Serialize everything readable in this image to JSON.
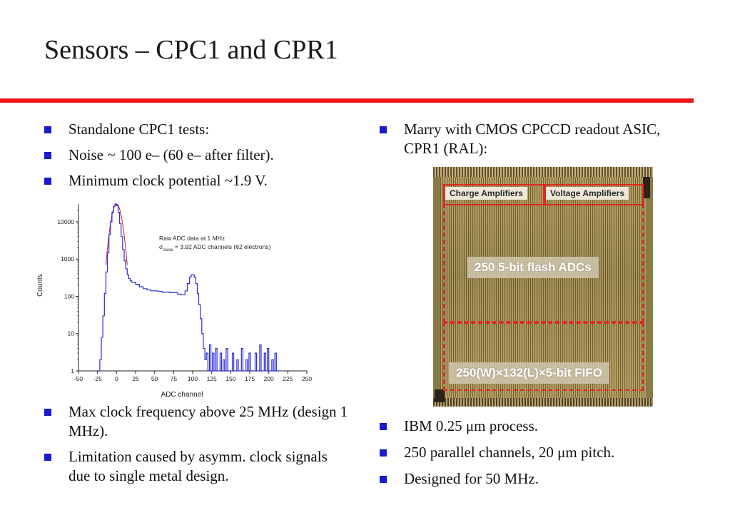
{
  "slide": {
    "title": "Sensors – CPC1 and CPR1"
  },
  "left": {
    "top_bullets": [
      "Standalone CPC1 tests:",
      "Noise ~ 100 e– (60 e– after filter).",
      "Minimum clock potential ~1.9 V."
    ],
    "bottom_bullets": [
      "Max clock frequency above 25 MHz (design 1 MHz).",
      "Limitation caused by asymm. clock signals due to single metal design."
    ]
  },
  "right": {
    "top_bullets": [
      "Marry with CMOS CPCCD readout ASIC, CPR1 (RAL):"
    ],
    "bottom_bullets": [
      "IBM 0.25 μm process.",
      "250 parallel channels, 20 μm pitch.",
      "Designed for 50 MHz."
    ]
  },
  "die_photo": {
    "label_charge": "Charge Amplifiers",
    "label_voltage": "Voltage Amplifiers",
    "label_adc": "250 5-bit flash ADCs",
    "label_fifo": "250(W)×132(L)×5-bit FIFO"
  },
  "chart_data": {
    "type": "line",
    "xlabel": "ADC channel",
    "ylabel": "Counts",
    "xlim": [
      -50,
      250
    ],
    "ylim": [
      1,
      30000
    ],
    "yscale": "log",
    "xticks": [
      "-50",
      "-25",
      "0",
      "25",
      "50",
      "75",
      "100",
      "125",
      "150",
      "175",
      "200",
      "225",
      "250"
    ],
    "yticks": [
      "1",
      "10",
      "100",
      "1000",
      "10000"
    ],
    "annotation_line1": "Raw ADC data at 1 MHz",
    "annotation_sigma": "σ",
    "annotation_sub": "noise",
    "annotation_line2_rest": " = 3.92 ADC channels (62 electrons)",
    "color": "#2b2bd9",
    "series": [
      {
        "x": [
          -25,
          -22,
          -20,
          -18,
          -16,
          -14,
          -12,
          -10,
          -8,
          -6,
          -4,
          -2,
          0,
          2,
          4,
          6,
          8,
          10,
          12,
          14,
          16,
          18,
          20,
          25,
          30,
          35,
          40,
          45,
          50,
          55,
          60,
          65,
          70,
          75,
          80,
          85,
          90,
          93,
          96,
          98,
          100,
          102,
          104,
          106,
          108,
          110,
          112,
          114,
          116,
          118,
          120,
          122,
          124,
          126,
          128,
          130,
          132,
          134,
          136,
          138,
          140,
          142,
          144,
          146,
          148,
          150,
          152,
          154,
          156,
          158,
          160,
          162,
          164,
          166,
          168,
          170,
          172,
          174,
          176,
          178,
          180,
          182,
          184,
          186,
          188,
          190,
          192,
          194,
          196,
          198,
          200,
          202,
          204,
          206,
          208,
          210,
          212
        ],
        "y": [
          1,
          2,
          8,
          30,
          120,
          450,
          1500,
          4500,
          10000,
          18000,
          26000,
          30000,
          27000,
          18000,
          9000,
          4000,
          1800,
          900,
          550,
          380,
          300,
          260,
          240,
          210,
          180,
          160,
          150,
          140,
          140,
          135,
          130,
          130,
          125,
          125,
          115,
          110,
          140,
          220,
          330,
          380,
          380,
          330,
          220,
          120,
          60,
          25,
          10,
          4,
          2,
          3,
          1,
          5,
          1,
          3,
          1,
          4,
          1,
          1,
          3,
          1,
          2,
          1,
          4,
          1,
          1,
          1,
          3,
          1,
          1,
          2,
          1,
          1,
          4,
          1,
          1,
          2,
          1,
          3,
          1,
          1,
          1,
          3,
          1,
          1,
          5,
          1,
          1,
          3,
          1,
          4,
          1,
          1,
          2,
          1,
          3,
          1,
          1
        ]
      }
    ],
    "fit_color": "#d02020"
  }
}
